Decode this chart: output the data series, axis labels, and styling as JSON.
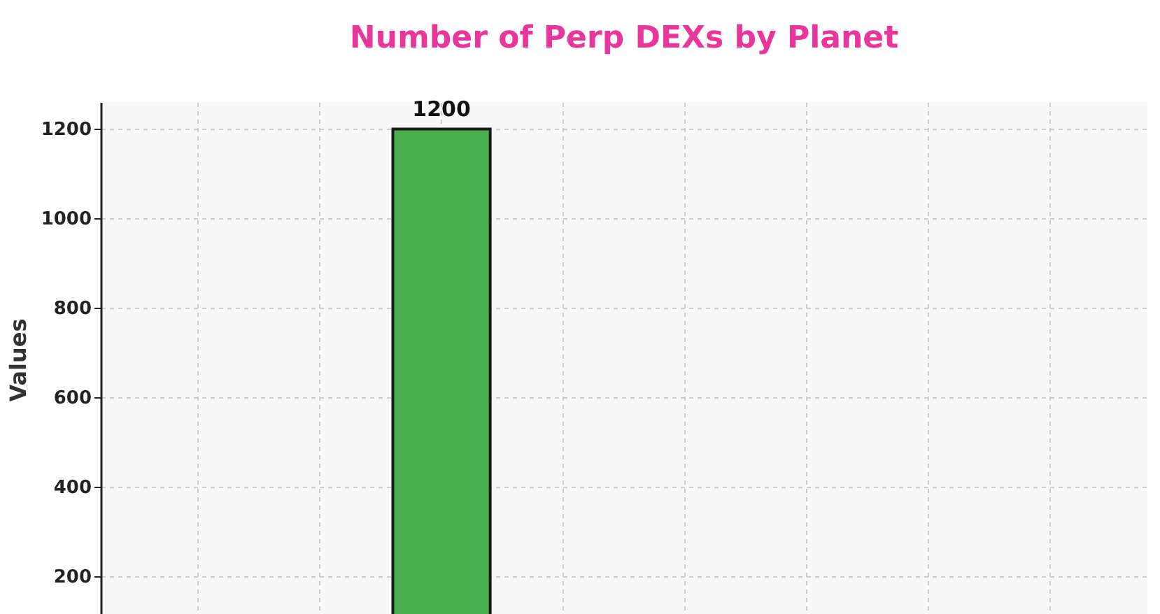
{
  "chart_data": {
    "type": "bar",
    "title": "Number of Perp DEXs by Planet",
    "ylabel": "Values",
    "categories": [
      null,
      null,
      null,
      null,
      null,
      null,
      null,
      null
    ],
    "values": [
      null,
      null,
      1200,
      null,
      null,
      null,
      null,
      null
    ],
    "color": "#4caf50",
    "ylim": [
      110,
      1260
    ],
    "yticks": [
      200,
      400,
      600,
      800,
      1000,
      1200
    ],
    "grid": true,
    "data_labels": true,
    "tick_labels": "y"
  }
}
